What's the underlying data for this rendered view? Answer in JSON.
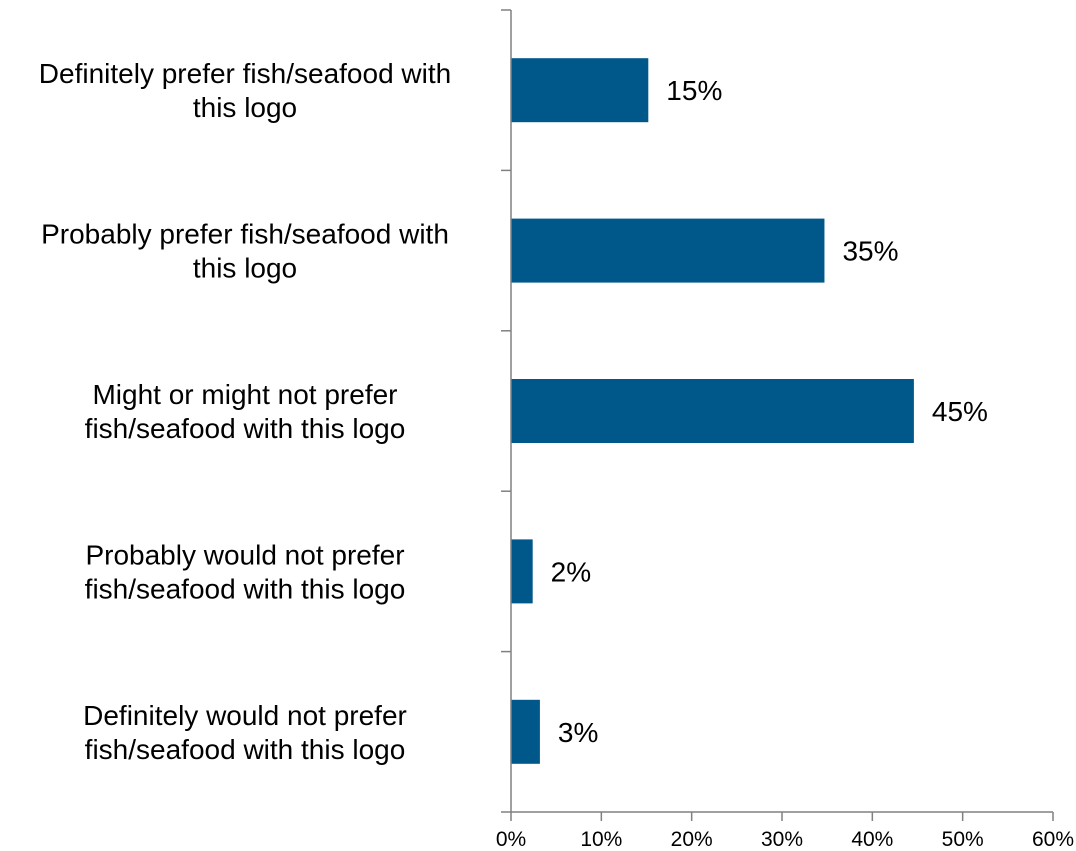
{
  "chart_data": {
    "type": "bar",
    "orientation": "horizontal",
    "categories": [
      [
        "Definitely prefer fish/seafood with",
        "this logo"
      ],
      [
        "Probably prefer fish/seafood with",
        "this logo"
      ],
      [
        "Might or might not prefer",
        "fish/seafood with this logo"
      ],
      [
        "Probably would not prefer",
        "fish/seafood with this logo"
      ],
      [
        "Definitely would not prefer",
        "fish/seafood with this logo"
      ]
    ],
    "values": [
      15.2,
      34.7,
      44.6,
      2.4,
      3.2
    ],
    "data_labels": [
      "15%",
      "35%",
      "45%",
      "2%",
      "3%"
    ],
    "x_ticks": [
      "0%",
      "10%",
      "20%",
      "30%",
      "40%",
      "50%",
      "60%"
    ],
    "xlim": [
      0,
      60
    ],
    "title": "",
    "xlabel": "",
    "ylabel": "",
    "grid": false,
    "legend": "none",
    "bar_color": "#00578A"
  }
}
